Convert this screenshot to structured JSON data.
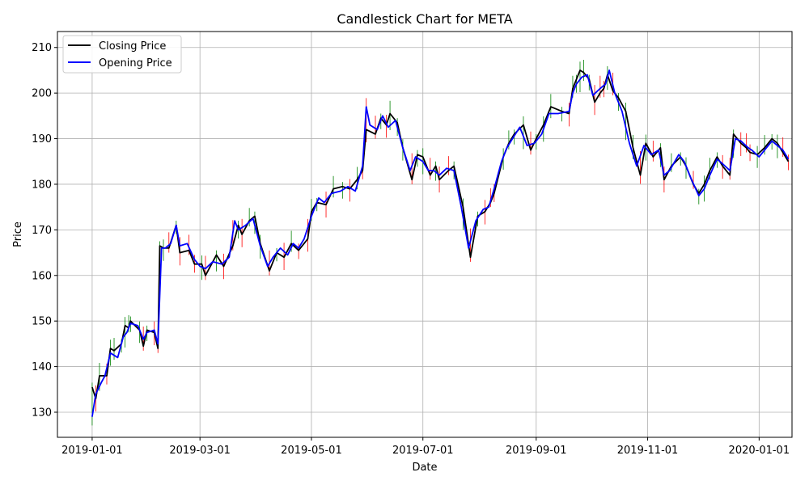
{
  "chart_data": {
    "type": "line",
    "title": "Candlestick Chart for META",
    "xlabel": "Date",
    "ylabel": "Price",
    "x_ticks": [
      "2019-01-01",
      "2019-03-01",
      "2019-05-01",
      "2019-07-01",
      "2019-09-01",
      "2019-11-01",
      "2020-01-01"
    ],
    "y_ticks": [
      130,
      140,
      150,
      160,
      170,
      180,
      190,
      200,
      210
    ],
    "xlim": [
      "2018-12-13",
      "2020-01-19"
    ],
    "ylim": [
      124.5,
      213.5
    ],
    "grid": true,
    "legend_position": "top-left",
    "colors": {
      "closing": "#000000",
      "opening": "#0000ff",
      "up_wick": "#008000",
      "down_wick": "#ff0000"
    },
    "series": [
      {
        "name": "Closing Price",
        "points": [
          [
            "2019-01-01",
            135.5
          ],
          [
            "2019-01-03",
            133
          ],
          [
            "2019-01-05",
            138
          ],
          [
            "2019-01-09",
            138
          ],
          [
            "2019-01-11",
            144
          ],
          [
            "2019-01-13",
            143.5
          ],
          [
            "2019-01-17",
            145
          ],
          [
            "2019-01-19",
            149
          ],
          [
            "2019-01-21",
            148.5
          ],
          [
            "2019-01-22",
            150
          ],
          [
            "2019-01-27",
            148
          ],
          [
            "2019-01-29",
            144.5
          ],
          [
            "2019-01-31",
            148
          ],
          [
            "2019-02-04",
            147.5
          ],
          [
            "2019-02-06",
            144
          ],
          [
            "2019-02-07",
            166.5
          ],
          [
            "2019-02-09",
            166
          ],
          [
            "2019-02-12",
            166
          ],
          [
            "2019-02-16",
            171
          ],
          [
            "2019-02-18",
            165
          ],
          [
            "2019-02-23",
            165.5
          ],
          [
            "2019-02-26",
            162.5
          ],
          [
            "2019-03-02",
            162.5
          ],
          [
            "2019-03-04",
            160
          ],
          [
            "2019-03-10",
            164.5
          ],
          [
            "2019-03-14",
            162
          ],
          [
            "2019-03-19",
            166.5
          ],
          [
            "2019-03-22",
            171
          ],
          [
            "2019-03-24",
            169
          ],
          [
            "2019-03-28",
            172
          ],
          [
            "2019-03-31",
            173
          ],
          [
            "2019-04-03",
            167
          ],
          [
            "2019-04-08",
            161
          ],
          [
            "2019-04-12",
            165
          ],
          [
            "2019-04-16",
            164
          ],
          [
            "2019-04-20",
            167
          ],
          [
            "2019-04-24",
            165.5
          ],
          [
            "2019-04-29",
            168
          ],
          [
            "2019-05-01",
            174
          ],
          [
            "2019-05-04",
            176
          ],
          [
            "2019-05-09",
            175.5
          ],
          [
            "2019-05-13",
            179
          ],
          [
            "2019-05-18",
            179.5
          ],
          [
            "2019-05-22",
            179
          ],
          [
            "2019-05-26",
            181
          ],
          [
            "2019-05-29",
            183
          ],
          [
            "2019-05-31",
            192
          ],
          [
            "2019-06-05",
            191
          ],
          [
            "2019-06-08",
            194.5
          ],
          [
            "2019-06-11",
            193
          ],
          [
            "2019-06-13",
            195.5
          ],
          [
            "2019-06-17",
            193.5
          ],
          [
            "2019-06-20",
            188
          ],
          [
            "2019-06-25",
            181
          ],
          [
            "2019-06-28",
            186.5
          ],
          [
            "2019-07-01",
            186
          ],
          [
            "2019-07-05",
            182
          ],
          [
            "2019-07-08",
            184
          ],
          [
            "2019-07-10",
            181
          ],
          [
            "2019-07-15",
            183
          ],
          [
            "2019-07-18",
            184
          ],
          [
            "2019-07-23",
            175
          ],
          [
            "2019-07-27",
            164
          ],
          [
            "2019-07-31",
            173
          ],
          [
            "2019-08-04",
            174
          ],
          [
            "2019-08-07",
            176
          ],
          [
            "2019-08-09",
            178
          ],
          [
            "2019-08-14",
            186
          ],
          [
            "2019-08-17",
            189
          ],
          [
            "2019-08-20",
            191
          ],
          [
            "2019-08-25",
            193
          ],
          [
            "2019-08-29",
            187.5
          ],
          [
            "2019-09-01",
            190
          ],
          [
            "2019-09-05",
            193
          ],
          [
            "2019-09-09",
            197
          ],
          [
            "2019-09-15",
            196
          ],
          [
            "2019-09-19",
            195.5
          ],
          [
            "2019-09-21",
            201
          ],
          [
            "2019-09-23",
            203
          ],
          [
            "2019-09-25",
            205
          ],
          [
            "2019-09-27",
            204.5
          ],
          [
            "2019-09-30",
            203
          ],
          [
            "2019-10-03",
            198
          ],
          [
            "2019-10-06",
            200
          ],
          [
            "2019-10-08",
            201
          ],
          [
            "2019-10-10",
            204
          ],
          [
            "2019-10-13",
            200.5
          ],
          [
            "2019-10-16",
            199
          ],
          [
            "2019-10-20",
            196
          ],
          [
            "2019-10-24",
            188
          ],
          [
            "2019-10-28",
            182
          ],
          [
            "2019-10-31",
            189
          ],
          [
            "2019-11-04",
            186
          ],
          [
            "2019-11-08",
            188
          ],
          [
            "2019-11-10",
            181
          ],
          [
            "2019-11-14",
            184
          ],
          [
            "2019-11-19",
            186
          ],
          [
            "2019-11-22",
            184
          ],
          [
            "2019-11-26",
            180
          ],
          [
            "2019-11-29",
            178
          ],
          [
            "2019-12-02",
            180
          ],
          [
            "2019-12-05",
            183
          ],
          [
            "2019-12-09",
            186
          ],
          [
            "2019-12-12",
            184
          ],
          [
            "2019-12-16",
            182
          ],
          [
            "2019-12-18",
            191
          ],
          [
            "2019-12-22",
            189
          ],
          [
            "2019-12-25",
            188
          ],
          [
            "2019-12-27",
            187
          ],
          [
            "2019-12-31",
            186.5
          ],
          [
            "2020-01-04",
            188
          ],
          [
            "2020-01-08",
            190
          ],
          [
            "2020-01-11",
            189
          ],
          [
            "2020-01-14",
            187
          ],
          [
            "2020-01-17",
            185
          ]
        ]
      },
      {
        "name": "Opening Price",
        "points": [
          [
            "2019-01-01",
            129
          ],
          [
            "2019-01-03",
            134
          ],
          [
            "2019-01-06",
            136.5
          ],
          [
            "2019-01-08",
            138
          ],
          [
            "2019-01-11",
            143
          ],
          [
            "2019-01-15",
            142
          ],
          [
            "2019-01-18",
            146.5
          ],
          [
            "2019-01-20",
            147.5
          ],
          [
            "2019-01-22",
            149.5
          ],
          [
            "2019-01-26",
            149
          ],
          [
            "2019-01-29",
            146
          ],
          [
            "2019-01-31",
            147.5
          ],
          [
            "2019-02-04",
            148
          ],
          [
            "2019-02-06",
            145
          ],
          [
            "2019-02-08",
            166
          ],
          [
            "2019-02-10",
            166
          ],
          [
            "2019-02-13",
            167
          ],
          [
            "2019-02-16",
            171
          ],
          [
            "2019-02-18",
            166.5
          ],
          [
            "2019-02-22",
            167
          ],
          [
            "2019-02-26",
            163.5
          ],
          [
            "2019-03-01",
            162
          ],
          [
            "2019-03-04",
            161.5
          ],
          [
            "2019-03-08",
            163
          ],
          [
            "2019-03-13",
            162.5
          ],
          [
            "2019-03-17",
            164
          ],
          [
            "2019-03-20",
            172
          ],
          [
            "2019-03-22",
            170
          ],
          [
            "2019-03-26",
            171
          ],
          [
            "2019-03-30",
            172.5
          ],
          [
            "2019-04-03",
            166.5
          ],
          [
            "2019-04-07",
            162
          ],
          [
            "2019-04-10",
            164
          ],
          [
            "2019-04-14",
            166
          ],
          [
            "2019-04-18",
            164.5
          ],
          [
            "2019-04-21",
            167
          ],
          [
            "2019-04-24",
            166
          ],
          [
            "2019-04-27",
            168
          ],
          [
            "2019-05-01",
            173
          ],
          [
            "2019-05-05",
            177
          ],
          [
            "2019-05-08",
            176
          ],
          [
            "2019-05-12",
            178
          ],
          [
            "2019-05-17",
            178.5
          ],
          [
            "2019-05-21",
            179.5
          ],
          [
            "2019-05-25",
            178.5
          ],
          [
            "2019-05-29",
            184
          ],
          [
            "2019-05-31",
            197
          ],
          [
            "2019-06-02",
            193
          ],
          [
            "2019-06-06",
            192
          ],
          [
            "2019-06-09",
            195
          ],
          [
            "2019-06-12",
            192.5
          ],
          [
            "2019-06-16",
            194
          ],
          [
            "2019-06-20",
            188
          ],
          [
            "2019-06-24",
            183
          ],
          [
            "2019-06-27",
            186
          ],
          [
            "2019-07-01",
            185
          ],
          [
            "2019-07-04",
            183
          ],
          [
            "2019-07-07",
            183
          ],
          [
            "2019-07-10",
            182
          ],
          [
            "2019-07-14",
            183.5
          ],
          [
            "2019-07-18",
            183
          ],
          [
            "2019-07-22",
            175
          ],
          [
            "2019-07-26",
            166
          ],
          [
            "2019-07-30",
            172
          ],
          [
            "2019-08-03",
            174.5
          ],
          [
            "2019-08-06",
            175
          ],
          [
            "2019-08-09",
            179
          ],
          [
            "2019-08-13",
            185
          ],
          [
            "2019-08-16",
            188
          ],
          [
            "2019-08-19",
            190
          ],
          [
            "2019-08-23",
            192.5
          ],
          [
            "2019-08-27",
            188.5
          ],
          [
            "2019-08-31",
            189
          ],
          [
            "2019-09-04",
            191
          ],
          [
            "2019-09-08",
            195.5
          ],
          [
            "2019-09-13",
            195.5
          ],
          [
            "2019-09-19",
            196
          ],
          [
            "2019-09-21",
            200
          ],
          [
            "2019-09-23",
            202
          ],
          [
            "2019-09-26",
            203.5
          ],
          [
            "2019-09-29",
            204
          ],
          [
            "2019-10-02",
            199.5
          ],
          [
            "2019-10-06",
            201
          ],
          [
            "2019-10-09",
            202
          ],
          [
            "2019-10-11",
            205
          ],
          [
            "2019-10-14",
            200
          ],
          [
            "2019-10-18",
            196
          ],
          [
            "2019-10-22",
            189
          ],
          [
            "2019-10-26",
            184
          ],
          [
            "2019-10-30",
            188.5
          ],
          [
            "2019-11-03",
            186.5
          ],
          [
            "2019-11-07",
            187.5
          ],
          [
            "2019-11-10",
            182
          ],
          [
            "2019-11-13",
            183
          ],
          [
            "2019-11-18",
            186.5
          ],
          [
            "2019-11-21",
            185
          ],
          [
            "2019-11-25",
            181
          ],
          [
            "2019-11-29",
            177.5
          ],
          [
            "2019-12-02",
            179
          ],
          [
            "2019-12-05",
            182
          ],
          [
            "2019-12-09",
            185.5
          ],
          [
            "2019-12-12",
            184.5
          ],
          [
            "2019-12-16",
            183
          ],
          [
            "2019-12-19",
            190
          ],
          [
            "2019-12-22",
            189.5
          ],
          [
            "2019-12-26",
            188
          ],
          [
            "2019-12-28",
            187.5
          ],
          [
            "2020-01-01",
            186
          ],
          [
            "2020-01-04",
            187.5
          ],
          [
            "2020-01-08",
            189.5
          ],
          [
            "2020-01-11",
            188.5
          ],
          [
            "2020-01-14",
            187.5
          ],
          [
            "2020-01-17",
            185.5
          ]
        ]
      }
    ]
  }
}
